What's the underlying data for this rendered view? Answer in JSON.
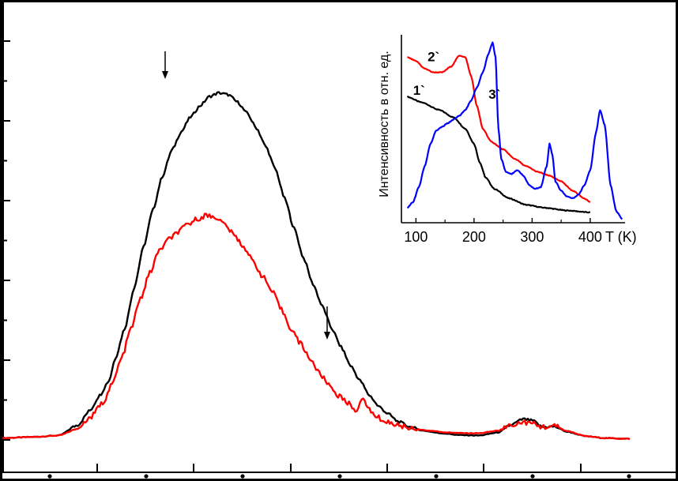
{
  "chart_data": [
    {
      "type": "line",
      "panel": "main",
      "title": "",
      "xlabel": "",
      "ylabel": "",
      "xlim": [
        0,
        100
      ],
      "ylim": [
        0,
        100
      ],
      "grid": false,
      "legend": "none",
      "x_ticks_major": 6,
      "x_ticks_minor": 7,
      "y_ticks": 12,
      "series": [
        {
          "color": "#000000",
          "points": [
            [
              0,
              0.5
            ],
            [
              5,
              0.8
            ],
            [
              9,
              1.2
            ],
            [
              12,
              4
            ],
            [
              14,
              8
            ],
            [
              15.5,
              12
            ],
            [
              17,
              16
            ],
            [
              18,
              22
            ],
            [
              19.5,
              30
            ],
            [
              21,
              41
            ],
            [
              22.5,
              52
            ],
            [
              24,
              62
            ],
            [
              25.5,
              71
            ],
            [
              27,
              78
            ],
            [
              28.5,
              83
            ],
            [
              30,
              87
            ],
            [
              31.5,
              90
            ],
            [
              33,
              92.5
            ],
            [
              34.5,
              93.5
            ],
            [
              36,
              93
            ],
            [
              37.5,
              91
            ],
            [
              39,
              88
            ],
            [
              40.5,
              84
            ],
            [
              42,
              79
            ],
            [
              43.5,
              73
            ],
            [
              45,
              65
            ],
            [
              46.5,
              57
            ],
            [
              48,
              49
            ],
            [
              49.5,
              42
            ],
            [
              51,
              36
            ],
            [
              52.5,
              30
            ],
            [
              54,
              25
            ],
            [
              55.5,
              20
            ],
            [
              57,
              16
            ],
            [
              58.5,
              12
            ],
            [
              60,
              9
            ],
            [
              61.5,
              7
            ],
            [
              63,
              5
            ],
            [
              65,
              3.5
            ],
            [
              67,
              2.5
            ],
            [
              70,
              1.8
            ],
            [
              73,
              1.3
            ],
            [
              76,
              1.2
            ],
            [
              79,
              2
            ],
            [
              81,
              4
            ],
            [
              83,
              5.6
            ],
            [
              84.5,
              5.2
            ],
            [
              86,
              3.5
            ],
            [
              88,
              3.6
            ],
            [
              90,
              2.2
            ],
            [
              93,
              1
            ],
            [
              96,
              0.5
            ],
            [
              100,
              0.3
            ]
          ]
        },
        {
          "color": "#ff0000",
          "points": [
            [
              0,
              0.5
            ],
            [
              5,
              0.8
            ],
            [
              9,
              1.2
            ],
            [
              12,
              3
            ],
            [
              14,
              6
            ],
            [
              16,
              10
            ],
            [
              17.5,
              15
            ],
            [
              19,
              22
            ],
            [
              20.5,
              30
            ],
            [
              22,
              38
            ],
            [
              23.5,
              45
            ],
            [
              25,
              51
            ],
            [
              26.5,
              54
            ],
            [
              28,
              56
            ],
            [
              29.5,
              58
            ],
            [
              31,
              59.5
            ],
            [
              32.5,
              60.5
            ],
            [
              34,
              60
            ],
            [
              35.5,
              58
            ],
            [
              37,
              55
            ],
            [
              38.5,
              52
            ],
            [
              40,
              48
            ],
            [
              41.5,
              44
            ],
            [
              43,
              40
            ],
            [
              44.5,
              35
            ],
            [
              46,
              30
            ],
            [
              47.5,
              26
            ],
            [
              49,
              22
            ],
            [
              50.5,
              18
            ],
            [
              52,
              15
            ],
            [
              53.5,
              12
            ],
            [
              55,
              10
            ],
            [
              56.5,
              8
            ],
            [
              57.5,
              11
            ],
            [
              59,
              7
            ],
            [
              61,
              5
            ],
            [
              63,
              4
            ],
            [
              65,
              3.2
            ],
            [
              68,
              2.5
            ],
            [
              71,
              2
            ],
            [
              74,
              1.8
            ],
            [
              76,
              1.8
            ],
            [
              79,
              2.5
            ],
            [
              81,
              4
            ],
            [
              83,
              4.8
            ],
            [
              84.5,
              4.4
            ],
            [
              86,
              3.5
            ],
            [
              88,
              3.7
            ],
            [
              90,
              2.4
            ],
            [
              93,
              1
            ],
            [
              96,
              0.5
            ],
            [
              100,
              0.3
            ]
          ]
        }
      ],
      "annotations": [
        "arrow-left-peak",
        "arrow-right-shoulder"
      ]
    },
    {
      "type": "line",
      "panel": "inset",
      "title": "",
      "xlabel": "T (K)",
      "ylabel": "Интенсивность в отн. ед.",
      "xlim": [
        75,
        460
      ],
      "ylim": [
        0,
        100
      ],
      "xticks": [
        "100",
        "200",
        "300",
        "400"
      ],
      "xtick_values": [
        100,
        200,
        300,
        400
      ],
      "grid": false,
      "legend": "inline labels",
      "series": [
        {
          "name": "1`",
          "color": "#000000",
          "label_at": [
            95,
            68
          ],
          "points": [
            [
              85,
              67
            ],
            [
              110,
              64
            ],
            [
              140,
              60
            ],
            [
              165,
              56
            ],
            [
              185,
              50
            ],
            [
              200,
              42
            ],
            [
              210,
              32
            ],
            [
              220,
              24
            ],
            [
              235,
              18
            ],
            [
              260,
              13
            ],
            [
              290,
              9.5
            ],
            [
              320,
              8
            ],
            [
              360,
              6.5
            ],
            [
              400,
              5.5
            ]
          ]
        },
        {
          "name": "2`",
          "color": "#ff0000",
          "label_at": [
            120,
            86
          ],
          "points": [
            [
              85,
              88
            ],
            [
              100,
              86
            ],
            [
              115,
              82
            ],
            [
              130,
              80
            ],
            [
              145,
              80
            ],
            [
              160,
              83
            ],
            [
              175,
              89
            ],
            [
              185,
              88
            ],
            [
              195,
              78
            ],
            [
              205,
              62
            ],
            [
              215,
              50
            ],
            [
              230,
              43
            ],
            [
              250,
              39
            ],
            [
              270,
              34
            ],
            [
              290,
              30
            ],
            [
              310,
              27
            ],
            [
              330,
              25
            ],
            [
              350,
              22
            ],
            [
              370,
              17
            ],
            [
              390,
              13
            ],
            [
              400,
              11
            ]
          ]
        },
        {
          "name": "3`",
          "color": "#0000ff",
          "label_at": [
            225,
            66
          ],
          "points": [
            [
              85,
              8
            ],
            [
              95,
              11
            ],
            [
              105,
              19
            ],
            [
              115,
              30
            ],
            [
              125,
              42
            ],
            [
              135,
              49
            ],
            [
              145,
              51
            ],
            [
              155,
              53
            ],
            [
              165,
              55
            ],
            [
              175,
              57
            ],
            [
              185,
              60
            ],
            [
              195,
              65
            ],
            [
              205,
              72
            ],
            [
              215,
              80
            ],
            [
              225,
              90
            ],
            [
              232,
              96
            ],
            [
              237,
              88
            ],
            [
              242,
              50
            ],
            [
              247,
              34
            ],
            [
              255,
              27
            ],
            [
              265,
              26
            ],
            [
              275,
              28
            ],
            [
              285,
              25
            ],
            [
              295,
              20
            ],
            [
              305,
              18
            ],
            [
              315,
              19
            ],
            [
              325,
              30
            ],
            [
              330,
              42
            ],
            [
              335,
              36
            ],
            [
              340,
              22
            ],
            [
              350,
              17
            ],
            [
              360,
              14
            ],
            [
              370,
              13
            ],
            [
              380,
              15
            ],
            [
              390,
              20
            ],
            [
              400,
              28
            ],
            [
              410,
              48
            ],
            [
              417,
              60
            ],
            [
              425,
              52
            ],
            [
              435,
              20
            ],
            [
              445,
              6
            ],
            [
              455,
              2
            ]
          ]
        }
      ]
    }
  ]
}
